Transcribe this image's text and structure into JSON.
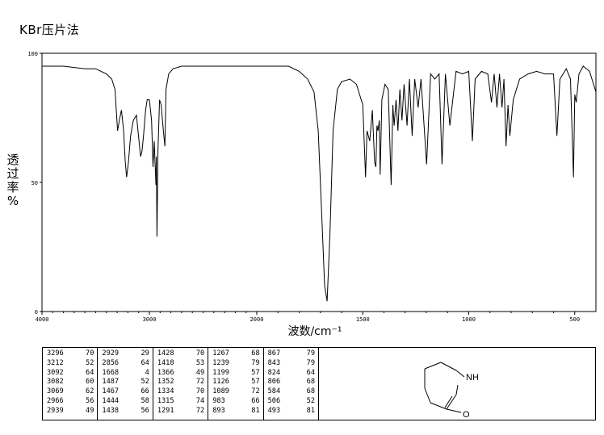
{
  "header": {
    "title": "KBr压片法"
  },
  "chart_data": {
    "type": "line",
    "ylabel": "透过率 %",
    "xlabel": "波数/cm⁻¹",
    "xlim": [
      4000,
      400
    ],
    "ylim": [
      0,
      100
    ],
    "x_ticks": [
      4000,
      3000,
      2000,
      1500,
      1000,
      500
    ],
    "y_ticks": [
      0,
      50,
      100
    ],
    "x_tick_labels": [
      "4000",
      "3000",
      "2000",
      "1500",
      "1000",
      "500"
    ],
    "y_tick_labels": [
      "0",
      "50",
      "100"
    ],
    "series": [
      {
        "x": [
          4000,
          3800,
          3600,
          3500,
          3450,
          3400,
          3350,
          3320,
          3296,
          3280,
          3260,
          3240,
          3225,
          3212,
          3195,
          3175,
          3150,
          3120,
          3092,
          3082,
          3069,
          3055,
          3035,
          3020,
          3000,
          2980,
          2966,
          2955,
          2939,
          2935,
          2929,
          2920,
          2905,
          2890,
          2870,
          2856,
          2845,
          2820,
          2780,
          2700,
          2500,
          2300,
          2000,
          1850,
          1800,
          1760,
          1730,
          1710,
          1695,
          1680,
          1668,
          1655,
          1640,
          1620,
          1600,
          1560,
          1530,
          1500,
          1487,
          1480,
          1467,
          1455,
          1444,
          1438,
          1433,
          1428,
          1422,
          1418,
          1410,
          1395,
          1380,
          1366,
          1358,
          1352,
          1343,
          1334,
          1325,
          1315,
          1305,
          1291,
          1280,
          1267,
          1255,
          1239,
          1225,
          1199,
          1180,
          1160,
          1140,
          1126,
          1110,
          1089,
          1060,
          1030,
          1000,
          983,
          970,
          940,
          910,
          893,
          880,
          867,
          855,
          843,
          834,
          824,
          815,
          806,
          790,
          760,
          720,
          680,
          640,
          600,
          584,
          570,
          540,
          520,
          506,
          500,
          493,
          480,
          460,
          430,
          400
        ],
        "y": [
          95,
          95,
          94,
          94,
          93,
          92,
          90,
          86,
          70,
          74,
          78,
          70,
          58,
          52,
          58,
          68,
          74,
          76,
          64,
          60,
          62,
          68,
          78,
          82,
          82,
          74,
          56,
          66,
          49,
          60,
          29,
          62,
          82,
          80,
          70,
          64,
          86,
          92,
          94,
          95,
          95,
          95,
          95,
          95,
          93,
          90,
          85,
          70,
          40,
          10,
          4,
          30,
          70,
          86,
          89,
          90,
          88,
          80,
          52,
          70,
          66,
          78,
          58,
          56,
          72,
          70,
          74,
          53,
          82,
          88,
          86,
          49,
          80,
          72,
          82,
          70,
          86,
          74,
          88,
          72,
          90,
          68,
          90,
          79,
          90,
          57,
          92,
          90,
          92,
          57,
          92,
          72,
          93,
          92,
          93,
          66,
          90,
          93,
          92,
          81,
          92,
          79,
          92,
          79,
          90,
          64,
          80,
          68,
          82,
          90,
          92,
          93,
          92,
          92,
          68,
          90,
          94,
          90,
          52,
          84,
          81,
          92,
          95,
          93,
          85
        ]
      }
    ]
  },
  "peak_table": {
    "columns": [
      [
        [
          "3296",
          "70"
        ],
        [
          "3212",
          "52"
        ],
        [
          "3092",
          "64"
        ],
        [
          "3082",
          "60"
        ],
        [
          "3069",
          "62"
        ],
        [
          "2966",
          "56"
        ],
        [
          "2939",
          "49"
        ]
      ],
      [
        [
          "2929",
          "29"
        ],
        [
          "2856",
          "64"
        ],
        [
          "1668",
          "4"
        ],
        [
          "1487",
          "52"
        ],
        [
          "1467",
          "66"
        ],
        [
          "1444",
          "58"
        ],
        [
          "1438",
          "56"
        ]
      ],
      [
        [
          "1428",
          "70"
        ],
        [
          "1418",
          "53"
        ],
        [
          "1366",
          "49"
        ],
        [
          "1352",
          "72"
        ],
        [
          "1334",
          "70"
        ],
        [
          "1315",
          "74"
        ],
        [
          "1291",
          "72"
        ]
      ],
      [
        [
          "1267",
          "68"
        ],
        [
          "1239",
          "79"
        ],
        [
          "1199",
          "57"
        ],
        [
          "1126",
          "57"
        ],
        [
          "1089",
          "72"
        ],
        [
          "983",
          "66"
        ],
        [
          "893",
          "81"
        ]
      ],
      [
        [
          "867",
          "79"
        ],
        [
          "843",
          "79"
        ],
        [
          "824",
          "64"
        ],
        [
          "806",
          "68"
        ],
        [
          "584",
          "68"
        ],
        [
          "506",
          "52"
        ],
        [
          "493",
          "81"
        ]
      ]
    ]
  },
  "structure": {
    "nh_label": "NH",
    "o_label": "O"
  }
}
